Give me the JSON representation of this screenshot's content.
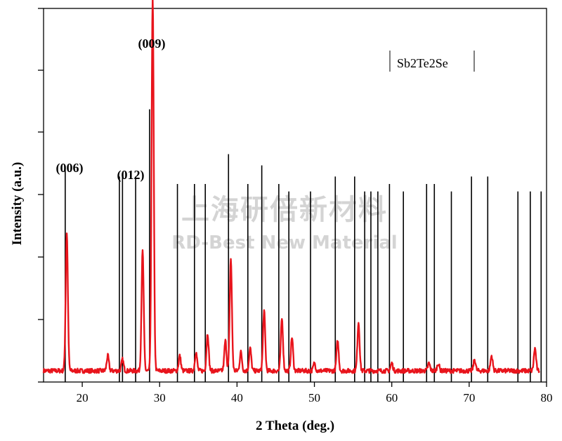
{
  "chart_data": {
    "type": "line",
    "xlabel": "2 Theta (deg.)",
    "ylabel": "Intensity (a.u.)",
    "xlim": [
      15,
      80
    ],
    "ylim": [
      0,
      1
    ],
    "x_ticks": [
      20,
      30,
      40,
      50,
      60,
      70,
      80
    ],
    "x_tick_labels": [
      "20",
      "30",
      "40",
      "50",
      "60",
      "70",
      "80"
    ],
    "legend": {
      "entries": [
        "Sb2Te2Se"
      ],
      "placement": "top-right"
    },
    "annotations": [
      {
        "text": "(006)",
        "x": 18.0
      },
      {
        "text": "(012)",
        "x": 27.8
      },
      {
        "text": "(009)",
        "x": 29.1
      }
    ],
    "watermark": {
      "line1": "上海研倍新材料",
      "line2": "RD-Best New Material"
    },
    "series": [
      {
        "name": "Sb2Te2Se",
        "color": "#e8141c",
        "baseline": 0.03,
        "peaks": [
          {
            "x": 18.0,
            "height": 0.37
          },
          {
            "x": 23.3,
            "height": 0.04
          },
          {
            "x": 25.2,
            "height": 0.03
          },
          {
            "x": 27.8,
            "height": 0.32
          },
          {
            "x": 29.1,
            "height": 1.0
          },
          {
            "x": 32.6,
            "height": 0.04
          },
          {
            "x": 34.7,
            "height": 0.05
          },
          {
            "x": 36.2,
            "height": 0.1
          },
          {
            "x": 38.5,
            "height": 0.08
          },
          {
            "x": 39.2,
            "height": 0.3
          },
          {
            "x": 40.5,
            "height": 0.05
          },
          {
            "x": 41.7,
            "height": 0.06
          },
          {
            "x": 43.5,
            "height": 0.16
          },
          {
            "x": 45.8,
            "height": 0.14
          },
          {
            "x": 47.1,
            "height": 0.09
          },
          {
            "x": 50.0,
            "height": 0.02
          },
          {
            "x": 53.0,
            "height": 0.08
          },
          {
            "x": 55.7,
            "height": 0.13
          },
          {
            "x": 60.0,
            "height": 0.02
          },
          {
            "x": 64.8,
            "height": 0.02
          },
          {
            "x": 66.0,
            "height": 0.02
          },
          {
            "x": 70.7,
            "height": 0.03
          },
          {
            "x": 72.9,
            "height": 0.04
          },
          {
            "x": 78.5,
            "height": 0.06
          }
        ]
      },
      {
        "name": "reference pattern",
        "color": "#000000",
        "type": "stick",
        "x": [
          17.8,
          24.8,
          25.2,
          26.9,
          28.7,
          32.3,
          34.5,
          35.9,
          38.9,
          41.4,
          43.2,
          45.4,
          46.7,
          49.5,
          52.7,
          55.2,
          56.5,
          57.3,
          58.2,
          59.7,
          61.5,
          64.5,
          65.5,
          67.7,
          70.3,
          72.4,
          76.3,
          77.9,
          79.3
        ],
        "y": [
          0.57,
          0.55,
          0.56,
          0.55,
          0.73,
          0.53,
          0.53,
          0.53,
          0.61,
          0.53,
          0.58,
          0.53,
          0.51,
          0.51,
          0.55,
          0.55,
          0.51,
          0.51,
          0.51,
          0.53,
          0.51,
          0.53,
          0.53,
          0.51,
          0.55,
          0.55,
          0.51,
          0.51,
          0.51
        ]
      }
    ]
  }
}
